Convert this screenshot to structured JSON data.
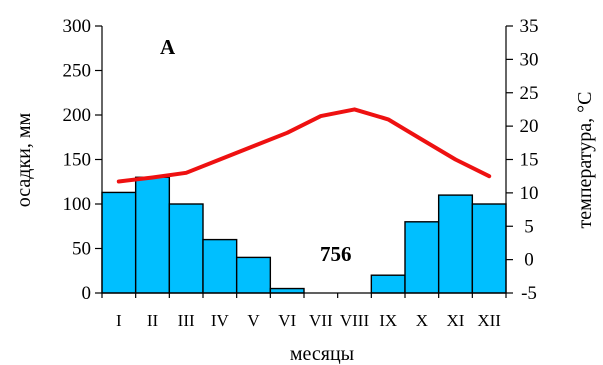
{
  "chart_data": {
    "type": "bar",
    "categories": [
      "I",
      "II",
      "III",
      "IV",
      "V",
      "VI",
      "VII",
      "VIII",
      "IX",
      "X",
      "XI",
      "XII"
    ],
    "xlabel": "месяцы",
    "series": [
      {
        "name": "",
        "kind": "bar",
        "axis": "left",
        "values": [
          113,
          130,
          100,
          60,
          40,
          5,
          0,
          0,
          20,
          80,
          110,
          100
        ],
        "color": "#00BFFF"
      },
      {
        "name": "",
        "kind": "line",
        "axis": "right",
        "values": [
          11.7,
          12.3,
          13.0,
          15.0,
          17.0,
          19.0,
          21.5,
          22.5,
          21.0,
          18.0,
          15.0,
          12.5
        ],
        "color": "#EE1111"
      }
    ],
    "y_left": {
      "label": "осадки, мм",
      "lim": [
        0,
        300
      ],
      "ticks": [
        0,
        50,
        100,
        150,
        200,
        250,
        300
      ]
    },
    "y_right": {
      "label": "температура, °С",
      "lim": [
        -5,
        35
      ],
      "ticks": [
        -5,
        0,
        5,
        10,
        15,
        20,
        25,
        30,
        35
      ]
    },
    "annotations": [
      {
        "text": "А",
        "anchor": "top-left"
      },
      {
        "text": "756",
        "anchor": "center"
      }
    ],
    "grid": false,
    "legend": "none"
  }
}
